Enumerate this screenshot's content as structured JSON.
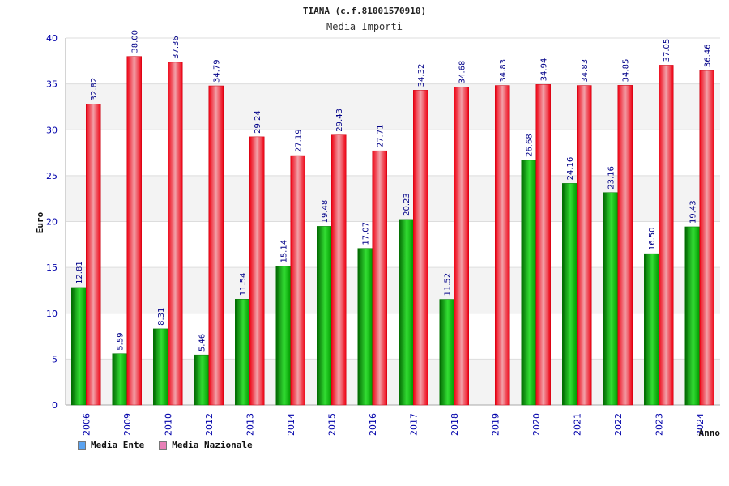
{
  "colors": {
    "ente": "#00b000",
    "nazionale": "#ee1a2b",
    "ente_swatch": "#5ba3f0",
    "nazionale_swatch": "#e77fb6"
  },
  "chart_data": {
    "type": "bar",
    "title": "TIANA (c.f.81001570910)",
    "subtitle": "Media Importi",
    "xlabel": "Anno",
    "ylabel": "Euro",
    "ylim": [
      0,
      40
    ],
    "yticks": [
      0,
      5,
      10,
      15,
      20,
      25,
      30,
      35,
      40
    ],
    "grid": true,
    "legend_position": "bottom-left",
    "categories": [
      "2006",
      "2009",
      "2010",
      "2012",
      "2013",
      "2014",
      "2015",
      "2016",
      "2017",
      "2018",
      "2019",
      "2020",
      "2021",
      "2022",
      "2023",
      "2024"
    ],
    "series": [
      {
        "name": "Media Ente",
        "values": [
          12.81,
          5.59,
          8.31,
          5.46,
          11.54,
          15.14,
          19.48,
          17.07,
          20.23,
          11.52,
          null,
          26.68,
          24.16,
          23.16,
          16.5,
          19.43
        ],
        "labels": [
          "12.81",
          "5.59",
          "8.31",
          "5.46",
          "11.54",
          "15.14",
          "19.48",
          "17.07",
          "20.23",
          "11.52",
          "",
          "26.68",
          "24.16",
          "23.16",
          "16.50",
          "19.43"
        ]
      },
      {
        "name": "Media Nazionale",
        "values": [
          32.82,
          38.0,
          37.36,
          34.79,
          29.24,
          27.19,
          29.43,
          27.71,
          34.32,
          34.68,
          34.83,
          34.94,
          34.83,
          34.85,
          37.05,
          36.46
        ],
        "labels": [
          "32.82",
          "38.00",
          "37.36",
          "34.79",
          "29.24",
          "27.19",
          "29.43",
          "27.71",
          "34.32",
          "34.68",
          "34.83",
          "34.94",
          "34.83",
          "34.85",
          "37.05",
          "36.46"
        ]
      }
    ]
  }
}
